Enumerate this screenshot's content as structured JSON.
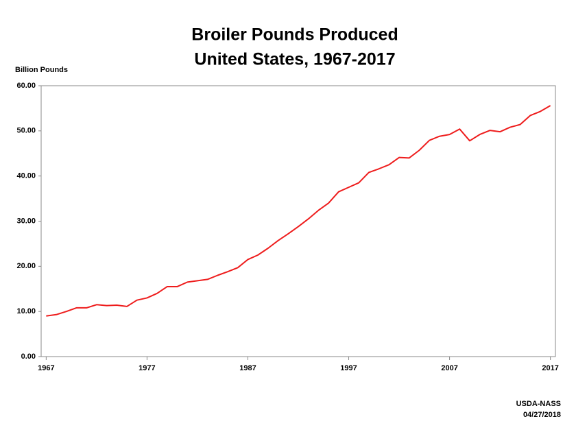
{
  "chart_data": {
    "type": "line",
    "title": "Broiler Pounds Produced",
    "subtitle": "United States, 1967-2017",
    "y_label": "Billion Pounds",
    "annotations": [
      "USDA-NASS",
      "04/27/2018"
    ],
    "x": [
      1967,
      1968,
      1969,
      1970,
      1971,
      1972,
      1973,
      1974,
      1975,
      1976,
      1977,
      1978,
      1979,
      1980,
      1981,
      1982,
      1983,
      1984,
      1985,
      1986,
      1987,
      1988,
      1989,
      1990,
      1991,
      1992,
      1993,
      1994,
      1995,
      1996,
      1997,
      1998,
      1999,
      2000,
      2001,
      2002,
      2003,
      2004,
      2005,
      2006,
      2007,
      2008,
      2009,
      2010,
      2011,
      2012,
      2013,
      2014,
      2015,
      2016,
      2017
    ],
    "series": [
      {
        "name": "Broiler Pounds Produced",
        "color": "#ee1c1c",
        "values": [
          9.0,
          9.3,
          10.0,
          10.8,
          10.8,
          11.5,
          11.3,
          11.4,
          11.1,
          12.5,
          13.0,
          14.0,
          15.5,
          15.5,
          16.5,
          16.8,
          17.1,
          18.0,
          18.8,
          19.7,
          21.5,
          22.5,
          24.0,
          25.7,
          27.2,
          28.8,
          30.5,
          32.4,
          34.0,
          36.5,
          37.5,
          38.5,
          40.8,
          41.6,
          42.5,
          44.1,
          44.0,
          45.7,
          47.9,
          48.8,
          49.2,
          50.4,
          47.8,
          49.2,
          50.1,
          49.8,
          50.8,
          51.4,
          53.4,
          54.3,
          55.6
        ]
      }
    ],
    "xlim": [
      1966.5,
      2017.5
    ],
    "xticks": [
      1967,
      1977,
      1987,
      1997,
      2007,
      2017
    ],
    "ylim": [
      0,
      60
    ],
    "yticks": [
      {
        "value": 0,
        "label": "0.00"
      },
      {
        "value": 10,
        "label": "10.00"
      },
      {
        "value": 20,
        "label": "20.00"
      },
      {
        "value": 30,
        "label": "30.00"
      },
      {
        "value": 40,
        "label": "40.00"
      },
      {
        "value": 50,
        "label": "50.00"
      },
      {
        "value": 60,
        "label": "60.00"
      }
    ],
    "grid": false
  }
}
